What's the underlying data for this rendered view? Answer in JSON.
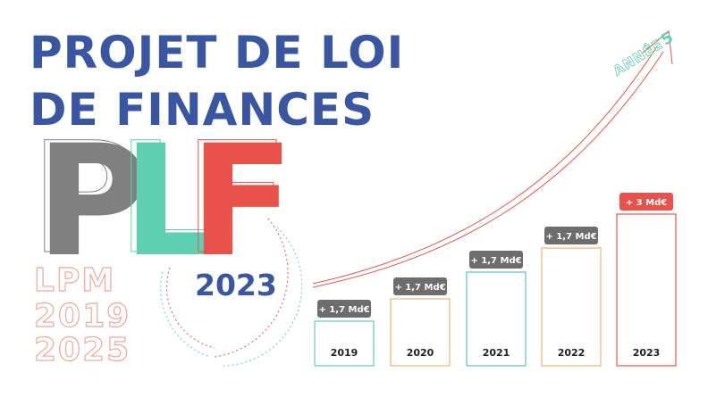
{
  "header": {
    "title_line1": "PROJET DE LOI",
    "title_line2": "DE FINANCES"
  },
  "logo": {
    "letters": [
      "P",
      "L",
      "F"
    ],
    "year": "2023"
  },
  "lpm": [
    "LPM",
    "2019",
    "2025"
  ],
  "arrow_label": {
    "text": "ANNÉE",
    "number": "5"
  },
  "steps": [
    {
      "year": "2019",
      "label": "+ 1,7 Md€"
    },
    {
      "year": "2020",
      "label": "+ 1,7 Md€"
    },
    {
      "year": "2021",
      "label": "+ 1,7 Md€"
    },
    {
      "year": "2022",
      "label": "+ 1,7 Md€"
    },
    {
      "year": "2023",
      "label": "+ 3 Md€"
    }
  ]
}
